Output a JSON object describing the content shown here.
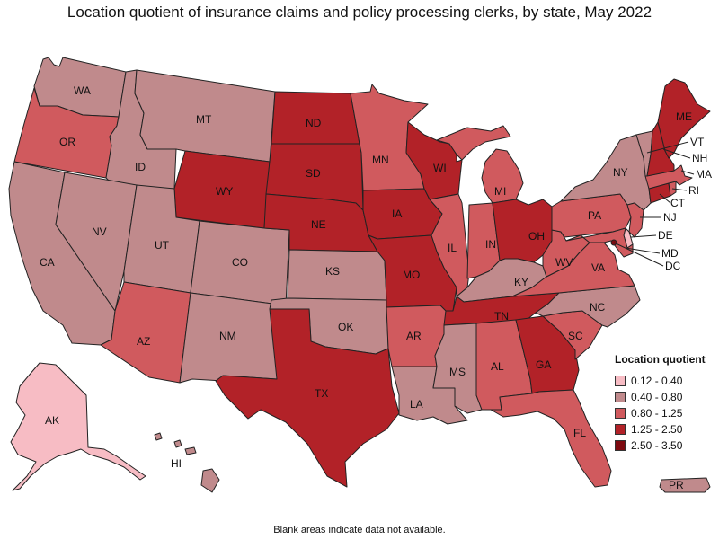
{
  "title": "Location quotient of insurance claims and policy processing clerks, by state, May 2022",
  "footnote": "Blank areas indicate data not available.",
  "legend": {
    "title": "Location quotient",
    "items": [
      {
        "label": "0.12 - 0.40",
        "color": "#f7bcc4"
      },
      {
        "label": "0.40 - 0.80",
        "color": "#c08a8c"
      },
      {
        "label": "0.80 - 1.25",
        "color": "#d05a5e"
      },
      {
        "label": "1.25 - 2.50",
        "color": "#b22228"
      },
      {
        "label": "2.50 - 3.50",
        "color": "#7d0a10"
      }
    ]
  },
  "bins": {
    "b1": "#f7bcc4",
    "b2": "#c08a8c",
    "b3": "#d05a5e",
    "b4": "#b22228",
    "b5": "#7d0a10"
  },
  "states": {
    "WA": {
      "label": "WA",
      "bin": "b2"
    },
    "OR": {
      "label": "OR",
      "bin": "b3"
    },
    "CA": {
      "label": "CA",
      "bin": "b2"
    },
    "ID": {
      "label": "ID",
      "bin": "b2"
    },
    "NV": {
      "label": "NV",
      "bin": "b2"
    },
    "MT": {
      "label": "MT",
      "bin": "b2"
    },
    "WY": {
      "label": "WY",
      "bin": "b4"
    },
    "UT": {
      "label": "UT",
      "bin": "b2"
    },
    "AZ": {
      "label": "AZ",
      "bin": "b3"
    },
    "CO": {
      "label": "CO",
      "bin": "b2"
    },
    "NM": {
      "label": "NM",
      "bin": "b2"
    },
    "ND": {
      "label": "ND",
      "bin": "b4"
    },
    "SD": {
      "label": "SD",
      "bin": "b4"
    },
    "NE": {
      "label": "NE",
      "bin": "b4"
    },
    "KS": {
      "label": "KS",
      "bin": "b2"
    },
    "OK": {
      "label": "OK",
      "bin": "b2"
    },
    "TX": {
      "label": "TX",
      "bin": "b4"
    },
    "MN": {
      "label": "MN",
      "bin": "b3"
    },
    "IA": {
      "label": "IA",
      "bin": "b4"
    },
    "MO": {
      "label": "MO",
      "bin": "b4"
    },
    "AR": {
      "label": "AR",
      "bin": "b3"
    },
    "LA": {
      "label": "LA",
      "bin": "b2"
    },
    "WI": {
      "label": "WI",
      "bin": "b4"
    },
    "IL": {
      "label": "IL",
      "bin": "b3"
    },
    "MI": {
      "label": "MI",
      "bin": "b3"
    },
    "IN": {
      "label": "IN",
      "bin": "b3"
    },
    "OH": {
      "label": "OH",
      "bin": "b4"
    },
    "KY": {
      "label": "KY",
      "bin": "b2"
    },
    "TN": {
      "label": "TN",
      "bin": "b4"
    },
    "MS": {
      "label": "MS",
      "bin": "b2"
    },
    "AL": {
      "label": "AL",
      "bin": "b3"
    },
    "GA": {
      "label": "GA",
      "bin": "b4"
    },
    "FL": {
      "label": "FL",
      "bin": "b3"
    },
    "SC": {
      "label": "SC",
      "bin": "b3"
    },
    "NC": {
      "label": "NC",
      "bin": "b2"
    },
    "VA": {
      "label": "VA",
      "bin": "b3"
    },
    "WV": {
      "label": "WV",
      "bin": "b3"
    },
    "PA": {
      "label": "PA",
      "bin": "b3"
    },
    "NY": {
      "label": "NY",
      "bin": "b2"
    },
    "NJ": {
      "label": "NJ",
      "bin": "b3"
    },
    "DE": {
      "label": "DE",
      "bin": "b1"
    },
    "MD": {
      "label": "MD",
      "bin": "b3"
    },
    "DC": {
      "label": "DC",
      "bin": "b5"
    },
    "CT": {
      "label": "CT",
      "bin": "b4"
    },
    "RI": {
      "label": "RI",
      "bin": "b3"
    },
    "MA": {
      "label": "MA",
      "bin": "b3"
    },
    "VT": {
      "label": "VT",
      "bin": "b2"
    },
    "NH": {
      "label": "NH",
      "bin": "b4"
    },
    "ME": {
      "label": "ME",
      "bin": "b4"
    },
    "AK": {
      "label": "AK",
      "bin": "b1"
    },
    "HI": {
      "label": "HI",
      "bin": "b2"
    },
    "PR": {
      "label": "PR",
      "bin": "b2"
    }
  }
}
